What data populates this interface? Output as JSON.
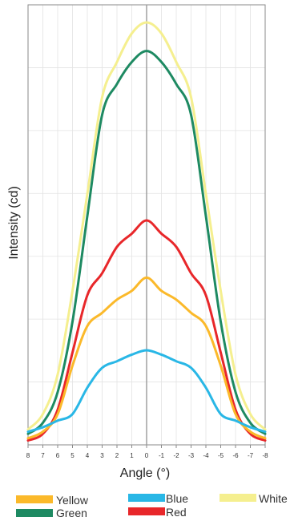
{
  "chart_data": {
    "type": "line",
    "xlabel": "Angle (°)",
    "ylabel": "Intensity (cd)",
    "x_ticks": [
      "8",
      "7",
      "6",
      "5",
      "4",
      "3",
      "2",
      "1",
      "0",
      "-1",
      "-2",
      "-3",
      "-4",
      "-5",
      "-6",
      "-7",
      "-8"
    ],
    "x": [
      8,
      7,
      6,
      5,
      4,
      3,
      2,
      1,
      0,
      -1,
      -2,
      -3,
      -4,
      -5,
      -6,
      -7,
      -8
    ],
    "xlim": [
      8,
      -8
    ],
    "ylim": [
      0,
      100
    ],
    "grid": true,
    "legend_position": "bottom",
    "series": [
      {
        "name": "White",
        "color": "#f5ef8f",
        "values": [
          3.5,
          7,
          16,
          35,
          57,
          79,
          87,
          93.5,
          96,
          93.5,
          87,
          79,
          57,
          35,
          16,
          7,
          3.5
        ]
      },
      {
        "name": "Green",
        "color": "#1e8a62",
        "values": [
          2.5,
          5,
          12,
          28,
          52,
          75,
          82,
          87,
          89.5,
          87,
          82,
          75,
          52,
          28,
          12,
          5,
          2.5
        ]
      },
      {
        "name": "Red",
        "color": "#e8272a",
        "values": [
          1,
          2.5,
          8,
          21,
          34,
          39,
          45,
          48,
          51,
          48,
          45,
          39,
          34,
          21,
          8,
          2.5,
          1
        ]
      },
      {
        "name": "Yellow",
        "color": "#fbb92a",
        "values": [
          1.5,
          3,
          7,
          18,
          27,
          30,
          33,
          35,
          38,
          35,
          33,
          30,
          27,
          18,
          7,
          3,
          1.5
        ]
      },
      {
        "name": "Blue",
        "color": "#29b7e6",
        "values": [
          3,
          4,
          5.5,
          7,
          13,
          17.5,
          19,
          20.5,
          21.5,
          20.5,
          19,
          17.5,
          13,
          7,
          5.5,
          4,
          3
        ]
      }
    ]
  },
  "legend": [
    {
      "label": "Yellow",
      "color": "#fbb92a"
    },
    {
      "label": "Blue",
      "color": "#29b7e6"
    },
    {
      "label": "White",
      "color": "#f5ef8f"
    },
    {
      "label": "Green",
      "color": "#1e8a62"
    },
    {
      "label": "Red",
      "color": "#e8272a"
    }
  ]
}
